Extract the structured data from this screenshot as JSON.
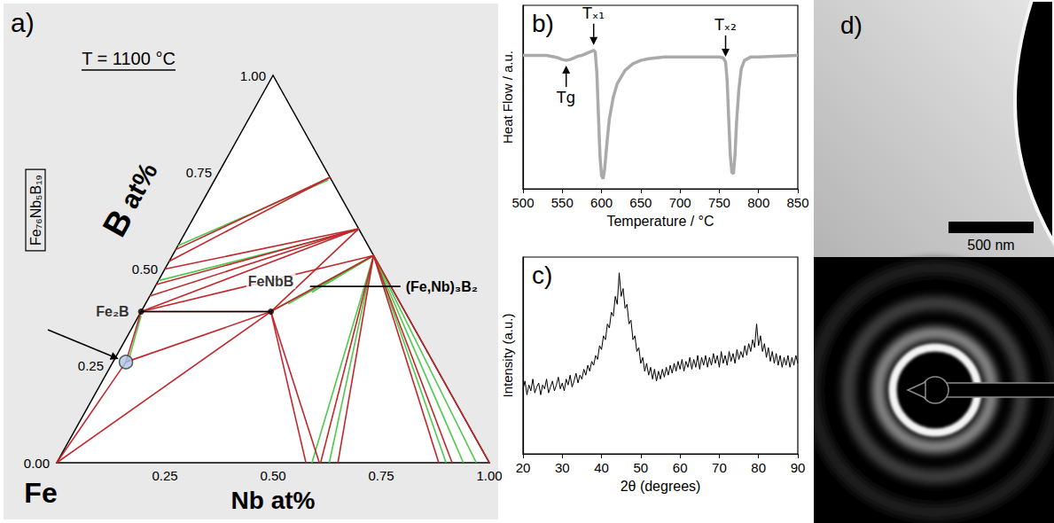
{
  "ternary": {
    "panel": "a)",
    "title": "T = 1100 °C",
    "corner_label": "Fe",
    "axis_b": "B at%",
    "axis_nb": "Nb at%",
    "range": [
      0,
      1
    ],
    "b_ticks": [
      {
        "value": 0,
        "label": "0.00"
      },
      0.25,
      {
        "value": 0.5,
        "label": "0.50"
      },
      0.75,
      {
        "value": 1,
        "label": "1.00"
      }
    ],
    "nb_ticks": [
      0.25,
      {
        "value": 0.5,
        "label": "0.50"
      },
      0.75,
      {
        "value": 1,
        "label": "1.00"
      }
    ],
    "tie_lines": [
      {
        "color": "#4ec94e",
        "segments": [
          [
            0,
            0.56,
            0.263,
            0.73
          ],
          [
            0,
            0.47,
            0.396,
            0.6
          ],
          [
            0.31,
            0.4,
            0.465,
            0.535
          ],
          [
            0.33,
            0.41,
            0.465,
            0.535
          ],
          [
            0.35,
            0.43,
            0.465,
            0.535
          ],
          [
            0.37,
            0.44,
            0.465,
            0.535
          ],
          [
            0.39,
            0.46,
            0.465,
            0.535
          ],
          [
            0.005,
            0.38,
            0.035,
            0.26
          ],
          [
            0.465,
            0.535,
            0.59,
            0
          ],
          [
            0.465,
            0.535,
            0.63,
            0
          ],
          [
            0.465,
            0.535,
            0.9,
            0
          ],
          [
            0.465,
            0.535,
            0.94,
            0
          ],
          [
            0.465,
            0.535,
            0.97,
            0
          ]
        ]
      },
      {
        "color": "#c0282d",
        "segments": [
          [
            0,
            0.55,
            0.263,
            0.737
          ],
          [
            0,
            0.52,
            0.263,
            0.737
          ],
          [
            0,
            0.5,
            0.396,
            0.604
          ],
          [
            0,
            0.46,
            0.396,
            0.604
          ],
          [
            0,
            0.43,
            0.396,
            0.604
          ],
          [
            0,
            0.39,
            0.396,
            0.604
          ],
          [
            0,
            0.39,
            0.465,
            0.535
          ],
          [
            0.3,
            0.39,
            0.465,
            0.535
          ],
          [
            0.3,
            0.39,
            0.396,
            0.604
          ],
          [
            0,
            0.39,
            0.3,
            0.39
          ],
          [
            0,
            0.39,
            0.03,
            0.26
          ],
          [
            0.03,
            0.26,
            0.3,
            0.39
          ],
          [
            0,
            0,
            0.3,
            0.39
          ],
          [
            0,
            0,
            0.03,
            0.26
          ],
          [
            0.3,
            0.39,
            0.576,
            0
          ],
          [
            0.3,
            0.39,
            0.607,
            0
          ],
          [
            0.465,
            0.535,
            0.61,
            0
          ],
          [
            0.465,
            0.535,
            0.65,
            0
          ],
          [
            0.465,
            0.535,
            0.883,
            0
          ],
          [
            0.465,
            0.535,
            0.914,
            0
          ],
          [
            0.465,
            0.535,
            1,
            0
          ]
        ]
      }
    ],
    "connectors": [
      {
        "from": [
          0,
          0.39
        ],
        "to": [
          0.3,
          0.39
        ]
      },
      {
        "from": [
          0.358,
          0.455
        ],
        "to": [
          0.567,
          0.455
        ],
        "label": "(Fe,Nb)₃B₂"
      }
    ],
    "phases": [
      {
        "name": "Fe₂B",
        "nb": 0,
        "b": 0.39
      },
      {
        "name": "FeNbB",
        "nb": 0.3,
        "b": 0.39
      }
    ],
    "alloy": {
      "name": "Fe₇₆Nb₅B₁₉",
      "nb": 0.03,
      "b": 0.26,
      "color": "#a9c6e8"
    }
  },
  "chart_data": [
    {
      "type": "line",
      "panel": "b)",
      "xlabel": "Temperature / °C",
      "ylabel": "Heat Flow / a.u.",
      "color": "#aaaaaa",
      "x": [
        500,
        510,
        520,
        530,
        540,
        545,
        550,
        555,
        560,
        565,
        570,
        575,
        580,
        585,
        590,
        592,
        594,
        596,
        598,
        600,
        602,
        604,
        607,
        610,
        615,
        620,
        630,
        640,
        650,
        660,
        680,
        700,
        720,
        740,
        750,
        755,
        758,
        760,
        762,
        764,
        766,
        768,
        770,
        772,
        775,
        778,
        782,
        790,
        800,
        820,
        850
      ],
      "values": [
        0.8,
        0.8,
        0.8,
        0.8,
        0.79,
        0.785,
        0.775,
        0.77,
        0.775,
        0.785,
        0.795,
        0.8,
        0.81,
        0.82,
        0.83,
        0.82,
        0.7,
        0.45,
        0.2,
        0.08,
        0.06,
        0.12,
        0.28,
        0.42,
        0.55,
        0.63,
        0.71,
        0.75,
        0.77,
        0.78,
        0.79,
        0.79,
        0.79,
        0.79,
        0.79,
        0.785,
        0.76,
        0.65,
        0.42,
        0.2,
        0.1,
        0.09,
        0.2,
        0.4,
        0.6,
        0.72,
        0.77,
        0.79,
        0.79,
        0.795,
        0.8
      ],
      "xlim": [
        500,
        850
      ],
      "xticks": [
        500,
        550,
        600,
        650,
        700,
        750,
        800,
        850
      ],
      "ylim": [
        0,
        1.1
      ],
      "tick_labels": "x",
      "annotations": [
        {
          "text": "Tg",
          "x": 555,
          "direction": "up"
        },
        {
          "text": "Tₓ₁",
          "x": 590,
          "direction": "down"
        },
        {
          "text": "Tₓ₂",
          "x": 758,
          "direction": "down"
        }
      ]
    },
    {
      "type": "line",
      "panel": "c)",
      "xlabel": "2θ (degrees)",
      "ylabel": "Intensity (a.u.)",
      "color": "#000000",
      "x": [
        20,
        20.5,
        21,
        21.5,
        22,
        22.5,
        23,
        23.5,
        24,
        24.5,
        25,
        25.5,
        26,
        26.5,
        27,
        27.5,
        28,
        28.5,
        29,
        29.5,
        30,
        30.5,
        31,
        31.5,
        32,
        32.5,
        33,
        33.5,
        34,
        34.5,
        35,
        35.5,
        36,
        36.5,
        37,
        37.5,
        38,
        38.5,
        39,
        39.5,
        40,
        40.5,
        41,
        41.5,
        42,
        42.5,
        43,
        43.5,
        44,
        44.5,
        45,
        45.5,
        46,
        46.5,
        47,
        47.5,
        48,
        48.5,
        49,
        49.5,
        50,
        50.5,
        51,
        51.5,
        52,
        52.5,
        53,
        53.5,
        54,
        54.5,
        55,
        55.5,
        56,
        56.5,
        57,
        57.5,
        58,
        58.5,
        59,
        59.5,
        60,
        60.5,
        61,
        61.5,
        62,
        62.5,
        63,
        63.5,
        64,
        64.5,
        65,
        65.5,
        66,
        66.5,
        67,
        67.5,
        68,
        68.5,
        69,
        69.5,
        70,
        70.5,
        71,
        71.5,
        72,
        72.5,
        73,
        73.5,
        74,
        74.5,
        75,
        75.5,
        76,
        76.5,
        77,
        77.5,
        78,
        78.5,
        79,
        79.5,
        80,
        80.5,
        81,
        81.5,
        82,
        82.5,
        83,
        83.5,
        84,
        84.5,
        85,
        85.5,
        86,
        86.5,
        87,
        87.5,
        88,
        88.5,
        89,
        89.5,
        90
      ],
      "values": [
        0.33,
        0.37,
        0.3,
        0.35,
        0.32,
        0.38,
        0.31,
        0.34,
        0.36,
        0.3,
        0.35,
        0.33,
        0.38,
        0.31,
        0.34,
        0.37,
        0.32,
        0.35,
        0.39,
        0.33,
        0.36,
        0.32,
        0.38,
        0.35,
        0.4,
        0.34,
        0.37,
        0.41,
        0.36,
        0.4,
        0.38,
        0.43,
        0.4,
        0.45,
        0.42,
        0.47,
        0.45,
        0.5,
        0.48,
        0.55,
        0.53,
        0.6,
        0.58,
        0.66,
        0.64,
        0.72,
        0.7,
        0.8,
        0.76,
        0.92,
        0.8,
        0.84,
        0.74,
        0.76,
        0.66,
        0.68,
        0.58,
        0.6,
        0.52,
        0.54,
        0.46,
        0.49,
        0.42,
        0.46,
        0.4,
        0.44,
        0.38,
        0.43,
        0.37,
        0.42,
        0.38,
        0.43,
        0.39,
        0.44,
        0.4,
        0.45,
        0.41,
        0.46,
        0.42,
        0.47,
        0.43,
        0.48,
        0.42,
        0.47,
        0.44,
        0.49,
        0.43,
        0.48,
        0.44,
        0.5,
        0.43,
        0.49,
        0.45,
        0.5,
        0.44,
        0.49,
        0.45,
        0.51,
        0.46,
        0.5,
        0.44,
        0.52,
        0.46,
        0.5,
        0.45,
        0.52,
        0.47,
        0.51,
        0.46,
        0.53,
        0.48,
        0.52,
        0.49,
        0.55,
        0.5,
        0.56,
        0.52,
        0.58,
        0.54,
        0.66,
        0.55,
        0.6,
        0.52,
        0.56,
        0.49,
        0.54,
        0.47,
        0.52,
        0.46,
        0.51,
        0.45,
        0.5,
        0.44,
        0.49,
        0.45,
        0.5,
        0.44,
        0.49,
        0.45,
        0.5,
        0.46
      ],
      "xlim": [
        20,
        90
      ],
      "xticks": [
        20,
        30,
        40,
        50,
        60,
        70,
        80,
        90
      ],
      "ylim": [
        0,
        1
      ],
      "tick_labels": "x"
    }
  ],
  "micrograph": {
    "panel": "d)",
    "scale_bar": "500 nm"
  }
}
